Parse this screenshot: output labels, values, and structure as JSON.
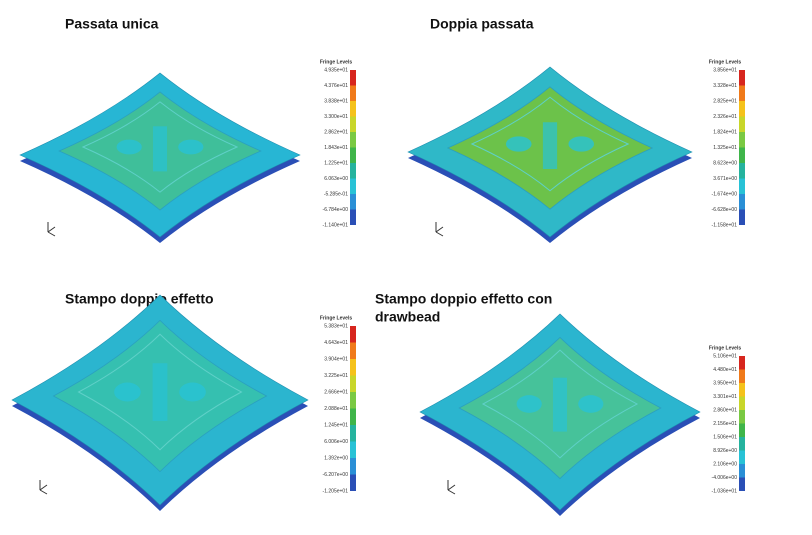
{
  "panels": [
    {
      "title_lines": [
        "Passata unica"
      ],
      "legend": {
        "title": "Fringe Levels",
        "levels": [
          "4.935e+01",
          "4.376e+01",
          "3.838e+01",
          "3.300e+01",
          "2.862e+01",
          "1.843e+01",
          "1.225e+01",
          "6.063e+00",
          "-5.285e-01",
          "-6.784e+00",
          "-1.140e+01"
        ]
      }
    },
    {
      "title_lines": [
        "Doppia passata"
      ],
      "legend": {
        "title": "Fringe Levels",
        "levels": [
          "3.856e+01",
          "3.328e+01",
          "2.825e+01",
          "2.326e+01",
          "1.824e+01",
          "1.325e+01",
          "8.623e+00",
          "3.671e+00",
          "-1.674e+00",
          "-6.628e+00",
          "-1.158e+01"
        ]
      }
    },
    {
      "title_lines": [
        "Stampo doppio effetto"
      ],
      "legend": {
        "title": "Fringe Levels",
        "levels": [
          "5.383e+01",
          "4.643e+01",
          "3.904e+01",
          "3.225e+01",
          "2.666e+01",
          "2.088e+01",
          "1.245e+01",
          "6.006e+00",
          "1.392e+00",
          "-6.207e+00",
          "-1.205e+01"
        ]
      }
    },
    {
      "title_lines": [
        "Stampo doppio effetto con",
        "drawbead"
      ],
      "legend": {
        "title": "Fringe Levels",
        "levels": [
          "5.106e+01",
          "4.480e+01",
          "3.950e+01",
          "3.301e+01",
          "2.860e+01",
          "2.156e+01",
          "1.506e+01",
          "8.926e+00",
          "2.106e+00",
          "-4.006e+00",
          "-1.036e+01"
        ]
      }
    }
  ]
}
